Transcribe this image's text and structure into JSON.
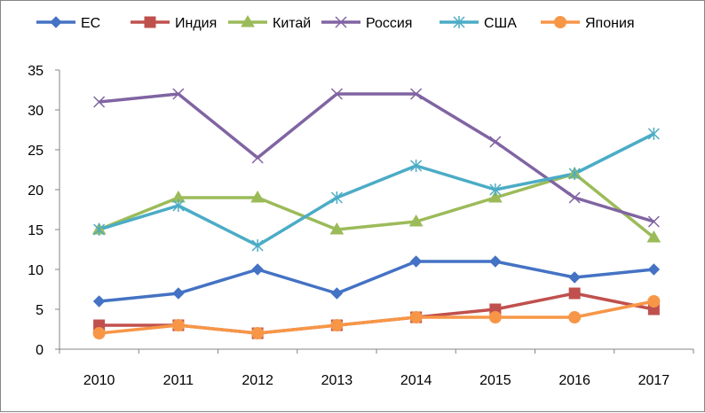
{
  "chart_data": {
    "type": "line",
    "title": "",
    "xlabel": "",
    "ylabel": "",
    "categories": [
      "2010",
      "2011",
      "2012",
      "2013",
      "2014",
      "2015",
      "2016",
      "2017"
    ],
    "ylim": [
      0,
      35
    ],
    "y_ticks": [
      0,
      5,
      10,
      15,
      20,
      25,
      30,
      35
    ],
    "grid": false,
    "legend_position": "top",
    "series": [
      {
        "name": "ЕС",
        "color": "#4472C4",
        "marker": "diamond",
        "values": [
          6,
          7,
          10,
          7,
          11,
          11,
          9,
          10
        ]
      },
      {
        "name": "Индия",
        "color": "#C0504D",
        "marker": "square",
        "values": [
          3,
          3,
          2,
          3,
          4,
          5,
          7,
          5
        ]
      },
      {
        "name": "Китай",
        "color": "#9BBB59",
        "marker": "triangle",
        "values": [
          15,
          19,
          19,
          15,
          16,
          19,
          22,
          14
        ]
      },
      {
        "name": "Россия",
        "color": "#8064A2",
        "marker": "x",
        "values": [
          31,
          32,
          24,
          32,
          32,
          26,
          19,
          16
        ]
      },
      {
        "name": "США",
        "color": "#4BACC6",
        "marker": "star",
        "values": [
          15,
          18,
          13,
          19,
          23,
          20,
          22,
          27
        ]
      },
      {
        "name": "Япония",
        "color": "#F79646",
        "marker": "circle",
        "values": [
          2,
          3,
          2,
          3,
          4,
          4,
          4,
          6
        ]
      }
    ]
  }
}
